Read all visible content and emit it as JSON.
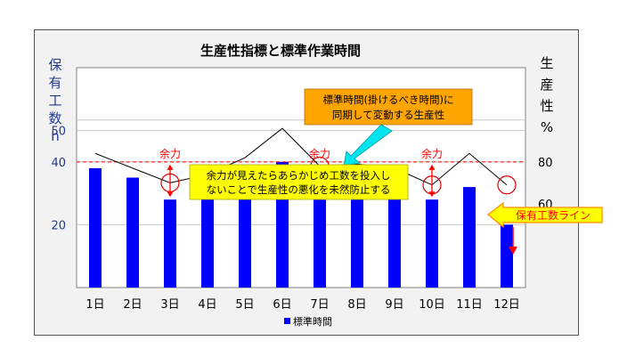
{
  "chart_data": {
    "type": "bar",
    "title": "生産性指標と標準作業時間",
    "categories": [
      "1日",
      "2日",
      "3日",
      "4日",
      "5日",
      "6日",
      "7日",
      "8日",
      "9日",
      "10日",
      "11日",
      "12日"
    ],
    "series": [
      {
        "name": "標準時間",
        "kind": "bar",
        "axis": "left",
        "color": "#0000ff",
        "values": [
          38,
          35,
          28,
          32,
          36,
          40,
          28,
          32,
          35,
          28,
          32,
          20
        ]
      },
      {
        "kind": "line",
        "axis": "right",
        "color": "#000000",
        "values": [
          84,
          77,
          70,
          74,
          82,
          96,
          78,
          79,
          77,
          69,
          84,
          69
        ]
      }
    ],
    "left_axis": {
      "label": "保有工数h",
      "ticks": [
        20,
        40,
        50
      ],
      "range": [
        0,
        70
      ]
    },
    "right_axis": {
      "label": "生産性%",
      "ticks": [
        60,
        80
      ],
      "range": [
        20,
        125
      ]
    },
    "reference_line": {
      "label": "保有工数ライン",
      "value": 40,
      "color": "#ff0000"
    },
    "highlight_days": [
      "3日",
      "7日",
      "10日",
      "12日"
    ],
    "slack_label": "余力",
    "slack_days": [
      "3日",
      "7日",
      "10日"
    ],
    "callout_top": [
      "標準時間(掛けるべき時間)に",
      "同期して変動する生産性"
    ],
    "callout_middle": [
      "余力が見えたらあらかじめ工数を投入し",
      "ないことで生産性の悪化を未然防止する"
    ],
    "legend": "top-less bottom-center",
    "grid": true
  },
  "colors": {
    "bar": "#0000ff",
    "left_axis_text": "#1f3a93",
    "reference": "#ff0000",
    "callout_orange": "#ffa500",
    "callout_yellow": "#ffff00",
    "cyan_arrow": "#00e5ee",
    "pointer_arrow": "#ffff00"
  }
}
